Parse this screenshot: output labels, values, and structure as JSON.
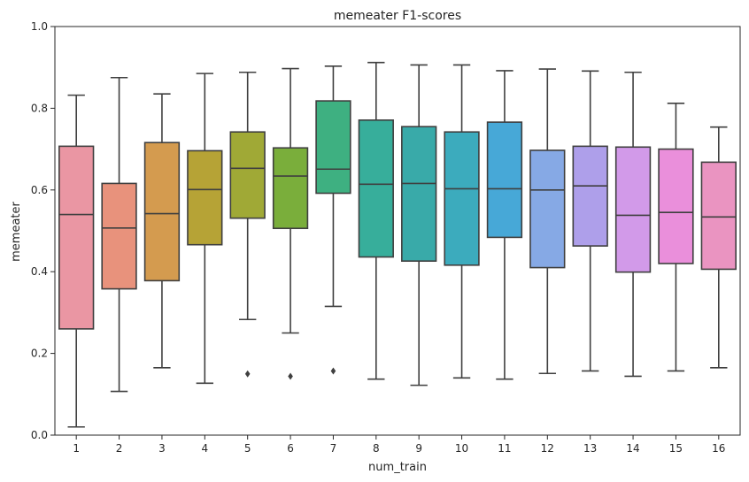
{
  "chart_data": {
    "type": "box",
    "title": "memeater F1-scores",
    "xlabel": "num_train",
    "ylabel": "memeater",
    "ylim": [
      0.0,
      1.0
    ],
    "yticks": [
      "0.0",
      "0.2",
      "0.4",
      "0.6",
      "0.8",
      "1.0"
    ],
    "categories": [
      "1",
      "2",
      "3",
      "4",
      "5",
      "6",
      "7",
      "8",
      "9",
      "10",
      "11",
      "12",
      "13",
      "14",
      "15",
      "16"
    ],
    "colors": [
      "#ea96a3",
      "#e8927c",
      "#d49b4f",
      "#b6a336",
      "#a0a936",
      "#7aae3b",
      "#3eb081",
      "#37ae9b",
      "#39aaa9",
      "#3cabbd",
      "#47a8d7",
      "#86a9e5",
      "#ae9fea",
      "#d29ae9",
      "#ea8fdb",
      "#ea94c1"
    ],
    "boxes": [
      {
        "min": 0.02,
        "q1": 0.26,
        "median": 0.54,
        "q3": 0.707,
        "max": 0.832,
        "outliers": []
      },
      {
        "min": 0.107,
        "q1": 0.358,
        "median": 0.507,
        "q3": 0.616,
        "max": 0.875,
        "outliers": []
      },
      {
        "min": 0.165,
        "q1": 0.378,
        "median": 0.542,
        "q3": 0.716,
        "max": 0.835,
        "outliers": []
      },
      {
        "min": 0.127,
        "q1": 0.466,
        "median": 0.601,
        "q3": 0.696,
        "max": 0.885,
        "outliers": []
      },
      {
        "min": 0.283,
        "q1": 0.531,
        "median": 0.653,
        "q3": 0.742,
        "max": 0.888,
        "outliers": [
          0.15
        ]
      },
      {
        "min": 0.25,
        "q1": 0.506,
        "median": 0.634,
        "q3": 0.703,
        "max": 0.897,
        "outliers": [
          0.144
        ]
      },
      {
        "min": 0.315,
        "q1": 0.592,
        "median": 0.651,
        "q3": 0.818,
        "max": 0.903,
        "outliers": [
          0.157
        ]
      },
      {
        "min": 0.137,
        "q1": 0.436,
        "median": 0.614,
        "q3": 0.771,
        "max": 0.912,
        "outliers": []
      },
      {
        "min": 0.122,
        "q1": 0.426,
        "median": 0.616,
        "q3": 0.755,
        "max": 0.906,
        "outliers": []
      },
      {
        "min": 0.14,
        "q1": 0.416,
        "median": 0.603,
        "q3": 0.742,
        "max": 0.906,
        "outliers": []
      },
      {
        "min": 0.137,
        "q1": 0.484,
        "median": 0.603,
        "q3": 0.766,
        "max": 0.892,
        "outliers": []
      },
      {
        "min": 0.151,
        "q1": 0.41,
        "median": 0.6,
        "q3": 0.697,
        "max": 0.896,
        "outliers": []
      },
      {
        "min": 0.157,
        "q1": 0.463,
        "median": 0.61,
        "q3": 0.707,
        "max": 0.891,
        "outliers": []
      },
      {
        "min": 0.144,
        "q1": 0.399,
        "median": 0.538,
        "q3": 0.705,
        "max": 0.888,
        "outliers": []
      },
      {
        "min": 0.157,
        "q1": 0.42,
        "median": 0.545,
        "q3": 0.7,
        "max": 0.812,
        "outliers": []
      },
      {
        "min": 0.165,
        "q1": 0.406,
        "median": 0.534,
        "q3": 0.668,
        "max": 0.754,
        "outliers": []
      }
    ]
  }
}
